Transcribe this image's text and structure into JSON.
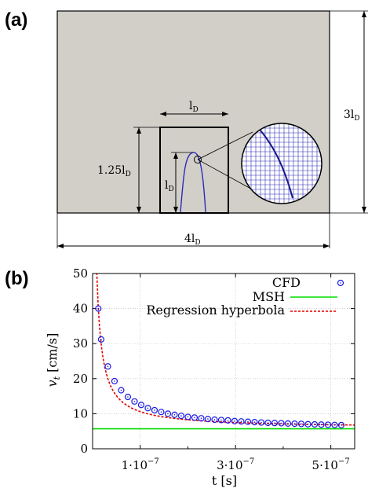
{
  "panel_a": {
    "label": "(a)",
    "dim_width_base": "l",
    "dim_width_sub": "D",
    "dim_height_prefix": "1.25l",
    "dim_height_sub": "D",
    "dim_inner_base": "l",
    "dim_inner_sub": "D",
    "dim_right_prefix": "3l",
    "dim_right_sub": "D",
    "dim_bottom_prefix": "4l",
    "dim_bottom_sub": "D",
    "colors": {
      "domain_fill": "#d2cfc9",
      "curve": "#2b2bb8",
      "grid": "#2b2bb8"
    }
  },
  "panel_b": {
    "label": "(b)"
  },
  "chart_data": {
    "type": "scatter",
    "xlabel": "t [s]",
    "ylabel_base": "v",
    "ylabel_sub": "t",
    "ylabel_rest": " [cm/s]",
    "xlim": [
      0,
      5.5e-07
    ],
    "ylim": [
      0,
      50
    ],
    "y_ticks": [
      "0",
      "10",
      "20",
      "30",
      "40",
      "50"
    ],
    "x_ticks": [
      {
        "value": 1e-07,
        "label": "1·10"
      },
      {
        "value": 3e-07,
        "label": "3·10"
      },
      {
        "value": 5e-07,
        "label": "5·10"
      }
    ],
    "x_tick_exp": "−7",
    "grid": true,
    "legend_position": "top-right",
    "series": [
      {
        "name": "CFD",
        "kind": "markers",
        "color": "#1a1ae6",
        "x": [
          1.2e-08,
          1.8e-08,
          3.2e-08,
          4.6e-08,
          6e-08,
          7.4e-08,
          8.8e-08,
          1.02e-07,
          1.16e-07,
          1.3e-07,
          1.44e-07,
          1.58e-07,
          1.72e-07,
          1.86e-07,
          2e-07,
          2.14e-07,
          2.28e-07,
          2.42e-07,
          2.56e-07,
          2.7e-07,
          2.84e-07,
          2.98e-07,
          3.12e-07,
          3.26e-07,
          3.4e-07,
          3.54e-07,
          3.68e-07,
          3.82e-07,
          3.96e-07,
          4.1e-07,
          4.24e-07,
          4.38e-07,
          4.52e-07,
          4.66e-07,
          4.8e-07,
          4.94e-07,
          5.08e-07,
          5.22e-07
        ],
        "values": [
          40.0,
          31.2,
          23.5,
          19.3,
          16.7,
          14.8,
          13.5,
          12.5,
          11.6,
          11.0,
          10.5,
          10.0,
          9.7,
          9.4,
          9.1,
          8.9,
          8.7,
          8.5,
          8.3,
          8.2,
          8.1,
          7.9,
          7.8,
          7.7,
          7.6,
          7.5,
          7.4,
          7.35,
          7.3,
          7.2,
          7.15,
          7.1,
          7.0,
          6.95,
          6.9,
          6.85,
          6.8,
          6.75
        ]
      },
      {
        "name": "MSH",
        "kind": "line",
        "color": "#00dd00",
        "values": [
          5.7
        ]
      },
      {
        "name": "Regression hyperbola",
        "kind": "dashed",
        "color": "#e00000"
      }
    ]
  }
}
